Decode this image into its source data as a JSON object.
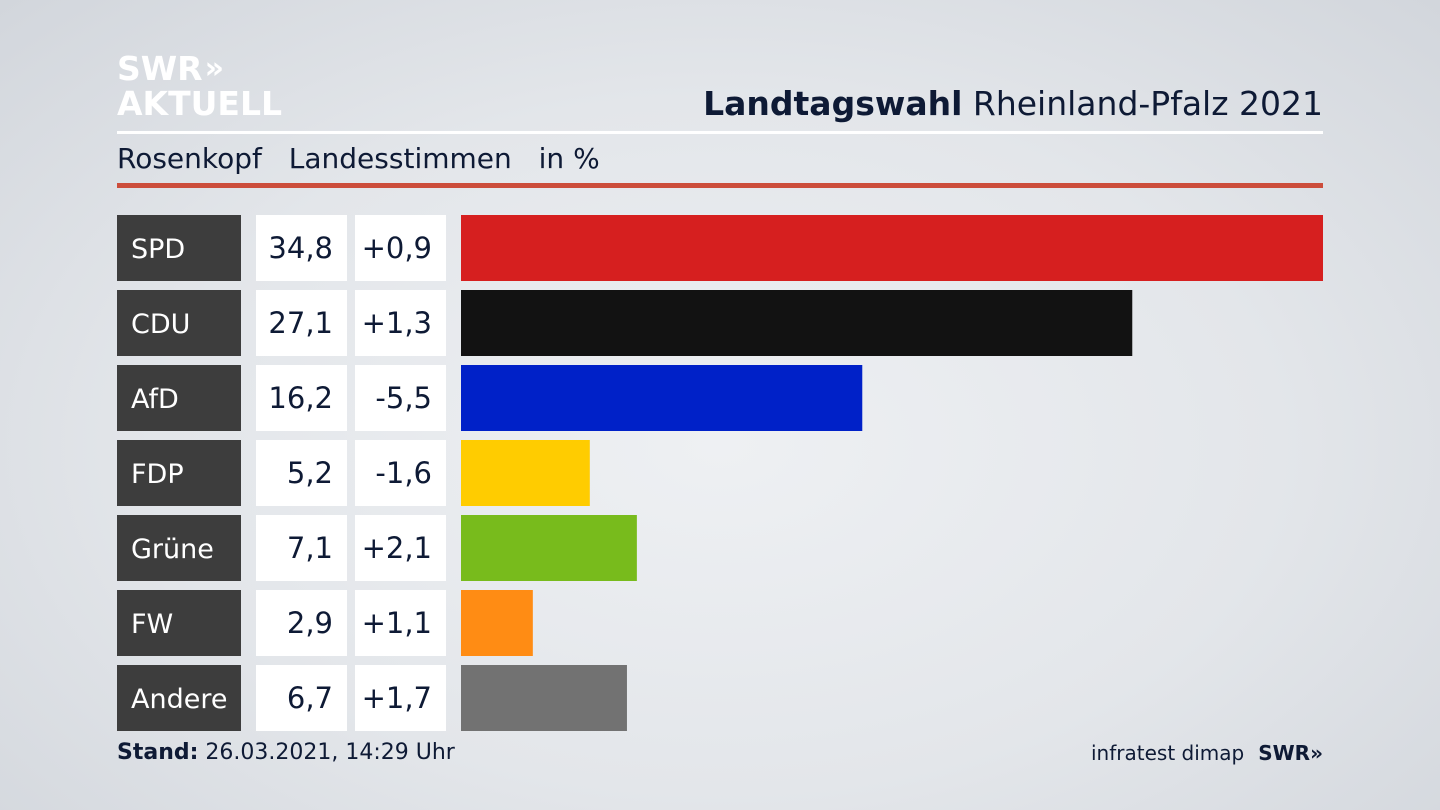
{
  "header": {
    "logo_line1": "SWR",
    "logo_chevrons": "»",
    "logo_line2": "AKTUELL",
    "title_bold": "Landtagswahl",
    "title_rest": "Rheinland-Pfalz 2021"
  },
  "subtitle": {
    "region": "Rosenkopf",
    "measure": "Landesstimmen",
    "unit": "in %"
  },
  "footer": {
    "stand_label": "Stand:",
    "stand_value": "26.03.2021, 14:29 Uhr",
    "source": "infratest dimap",
    "brand": "SWR»"
  },
  "chart_data": {
    "type": "bar",
    "orientation": "horizontal",
    "categories": [
      "SPD",
      "CDU",
      "AfD",
      "FDP",
      "Grüne",
      "FW",
      "Andere"
    ],
    "values": [
      34.8,
      27.1,
      16.2,
      5.2,
      7.1,
      2.9,
      6.7
    ],
    "value_labels": [
      "34,8",
      "27,1",
      "16,2",
      "5,2",
      "7,1",
      "2,9",
      "6,7"
    ],
    "change_labels": [
      "+0,9",
      "+1,3",
      "-5,5",
      "-1,6",
      "+2,1",
      "+1,1",
      "+1,7"
    ],
    "changes": [
      0.9,
      1.3,
      -5.5,
      -1.6,
      2.1,
      1.1,
      1.7
    ],
    "colors": [
      "#d61f1f",
      "#121212",
      "#0021c8",
      "#ffcc00",
      "#78bb1c",
      "#ff8c14",
      "#727272"
    ],
    "xlim": [
      0,
      34.8
    ],
    "grid": false,
    "legend": "none"
  }
}
